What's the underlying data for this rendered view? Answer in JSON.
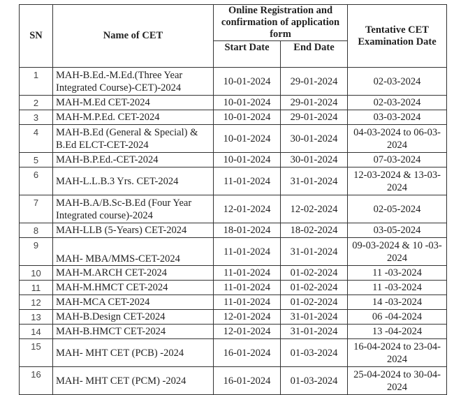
{
  "table": {
    "headers": {
      "sn": "SN",
      "name": "Name of CET",
      "registration": "Online Registration and confirmation of application form",
      "start": "Start Date",
      "end": "End Date",
      "exam": "Tentative CET Examination Date"
    },
    "rows": [
      {
        "sn": "1",
        "name": "MAH-B.Ed.-M.Ed.(Three Year Integrated Course)-CET)-2024",
        "start": "10-01-2024",
        "end": "29-01-2024",
        "exam": "02-03-2024"
      },
      {
        "sn": "2",
        "name": "MAH-M.Ed CET-2024",
        "start": "10-01-2024",
        "end": "29-01-2024",
        "exam": "02-03-2024"
      },
      {
        "sn": "3",
        "name": "MAH-M.P.Ed. CET-2024",
        "start": "10-01-2024",
        "end": "29-01-2024",
        "exam": "03-03-2024"
      },
      {
        "sn": "4",
        "name": "MAH-B.Ed (General & Special) & B.Ed ELCT-CET-2024",
        "start": "10-01-2024",
        "end": "30-01-2024",
        "exam": "04-03-2024 to 06-03-2024"
      },
      {
        "sn": "5",
        "name": "MAH-B.P.Ed.-CET-2024",
        "start": "10-01-2024",
        "end": "30-01-2024",
        "exam": "07-03-2024"
      },
      {
        "sn": "6",
        "name": "MAH-L.L.B.3 Yrs. CET-2024",
        "start": "11-01-2024",
        "end": "31-01-2024",
        "exam": "12-03-2024 & 13-03-2024"
      },
      {
        "sn": "7",
        "name": "MAH-B.A/B.Sc-B.Ed (Four Year Integrated course)-2024",
        "start": "12-01-2024",
        "end": "12-02-2024",
        "exam": "02-05-2024"
      },
      {
        "sn": "8",
        "name": "MAH-LLB (5-Years) CET-2024",
        "start": "18-01-2024",
        "end": "18-02-2024",
        "exam": "03-05-2024"
      },
      {
        "sn": "9",
        "name": "MAH- MBA/MMS-CET-2024",
        "start": "11-01-2024",
        "end": "31-01-2024",
        "exam": "09-03-2024 & 10 -03-2024"
      },
      {
        "sn": "10",
        "name": "MAH-M.ARCH CET-2024",
        "start": "11-01-2024",
        "end": "01-02-2024",
        "exam": "11 -03-2024"
      },
      {
        "sn": "11",
        "name": "MAH-M.HMCT CET-2024",
        "start": "11-01-2024",
        "end": "01-02-2024",
        "exam": "11 -03-2024"
      },
      {
        "sn": "12",
        "name": "MAH-MCA CET-2024",
        "start": "11-01-2024",
        "end": "01-02-2024",
        "exam": "14 -03-2024"
      },
      {
        "sn": "13",
        "name": "MAH-B.Design CET-2024",
        "start": "12-01-2024",
        "end": "31-01-2024",
        "exam": "06 -04-2024"
      },
      {
        "sn": "14",
        "name": "MAH-B.HMCT CET-2024",
        "start": "12-01-2024",
        "end": "31-01-2024",
        "exam": "13 -04-2024"
      },
      {
        "sn": "15",
        "name": "MAH- MHT CET (PCB) -2024",
        "start": "16-01-2024",
        "end": "01-03-2024",
        "exam": "16-04-2024 to 23-04-2024"
      },
      {
        "sn": "16",
        "name": "MAH- MHT CET (PCM) -2024",
        "start": "16-01-2024",
        "end": "01-03-2024",
        "exam": "25-04-2024 to 30-04-2024"
      }
    ]
  }
}
